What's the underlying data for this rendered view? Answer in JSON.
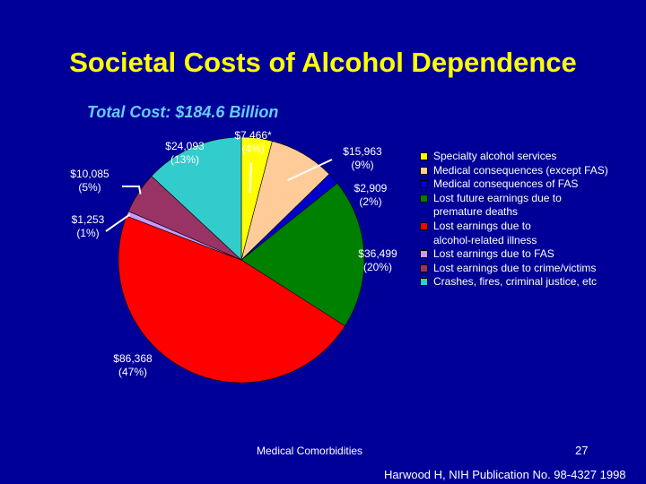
{
  "slide": {
    "title": "Societal Costs of Alcohol Dependence",
    "subtitle": "Total Cost: $184.6 Billion",
    "footer_label": "Medical Comorbidities",
    "page_number": "27",
    "citation": "Harwood H, NIH Publication No. 98-4327 1998"
  },
  "colors": {
    "background": "#000099",
    "title": "#ffff00",
    "subtitle": "#66ccff",
    "leader_line": "#ffffff"
  },
  "chart_data": {
    "type": "pie",
    "title": "Total Cost: $184.6 Billion",
    "start_angle_deg": 0,
    "direction": "clockwise",
    "slices": [
      {
        "name": "Specialty alcohol services",
        "value": 7466,
        "label": "$7,466*\n(4%)",
        "color": "#ffff00"
      },
      {
        "name": "Medical consequences (except FAS)",
        "value": 15963,
        "label": "$15,963\n(9%)",
        "color": "#ffcc99"
      },
      {
        "name": "Medical consequences of FAS",
        "value": 2909,
        "label": "$2,909\n(2%)",
        "color": "#0000cc"
      },
      {
        "name": "Lost future earnings due to\npremature deaths",
        "value": 36499,
        "label": "$36,499\n(20%)",
        "color": "#008000"
      },
      {
        "name": "Lost earnings due to\nalcohol-related illness",
        "value": 86368,
        "label": "$86,368\n(47%)",
        "color": "#ff0000"
      },
      {
        "name": "Lost earnings due to FAS",
        "value": 1253,
        "label": "$1,253\n(1%)",
        "color": "#cc99ff"
      },
      {
        "name": "Lost earnings due to crime/victims",
        "value": 10085,
        "label": "$10,085\n(5%)",
        "color": "#993366"
      },
      {
        "name": "Crashes, fires, criminal justice, etc",
        "value": 24093,
        "label": "$24,093\n(13%)",
        "color": "#33cccc"
      }
    ],
    "legend_position": "right"
  }
}
